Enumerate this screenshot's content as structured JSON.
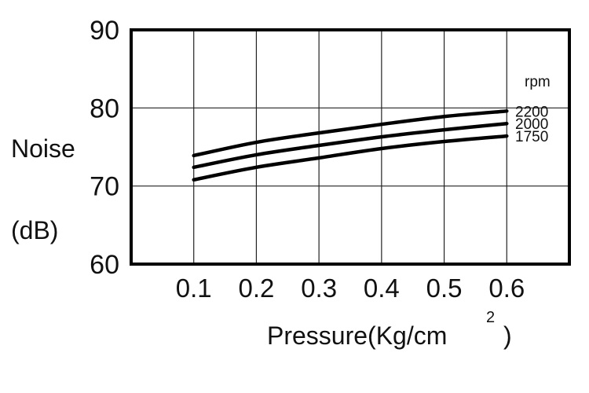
{
  "chart_data": {
    "type": "line",
    "title": "",
    "ylabel": "Noise",
    "ylabel_unit": "(dB)",
    "xlabel": "Pressure(Kg/cm",
    "xlabel_sup": "2",
    "xlabel_close": ")",
    "x": [
      0.1,
      0.2,
      0.3,
      0.4,
      0.5,
      0.6
    ],
    "x_tick_labels": [
      "0.1",
      "0.2",
      "0.3",
      "0.4",
      "0.5",
      "0.6"
    ],
    "y_ticks": [
      60,
      70,
      80,
      90
    ],
    "y_tick_labels": [
      "60",
      "70",
      "80",
      "90"
    ],
    "xlim": [
      0,
      0.7
    ],
    "ylim": [
      60,
      90
    ],
    "grid": true,
    "legend_title": "rpm",
    "series": [
      {
        "name": "2200",
        "values": [
          73.9,
          75.6,
          76.8,
          77.9,
          78.9,
          79.6
        ]
      },
      {
        "name": "2000",
        "values": [
          72.4,
          74.0,
          75.2,
          76.3,
          77.2,
          78.0
        ]
      },
      {
        "name": "1750",
        "values": [
          70.8,
          72.4,
          73.6,
          74.8,
          75.7,
          76.4
        ]
      }
    ],
    "line_color": "#000000"
  }
}
